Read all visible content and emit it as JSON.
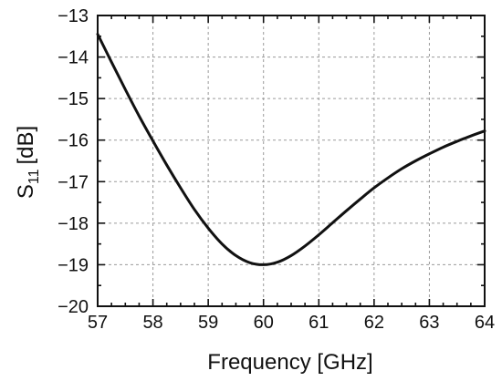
{
  "chart_data": {
    "type": "line",
    "xlabel": "Frequency [GHz]",
    "ylabel_base": "S",
    "ylabel_sub": "11",
    "ylabel_unit": "[dB]",
    "xlim": [
      57,
      64
    ],
    "ylim": [
      -20,
      -13
    ],
    "x_ticks": [
      "57",
      "58",
      "59",
      "60",
      "61",
      "62",
      "63",
      "64"
    ],
    "y_ticks": [
      "−13",
      "−14",
      "−15",
      "−16",
      "−17",
      "−18",
      "−19",
      "−20"
    ],
    "grid": true,
    "series": [
      {
        "color": "#111111",
        "x": [
          57.0,
          57.25,
          57.5,
          57.75,
          58.0,
          58.25,
          58.5,
          58.75,
          59.0,
          59.25,
          59.5,
          59.75,
          60.0,
          60.25,
          60.5,
          60.75,
          61.0,
          61.25,
          61.5,
          61.75,
          62.0,
          62.25,
          62.5,
          62.75,
          63.0,
          63.25,
          63.5,
          63.75,
          64.0
        ],
        "y": [
          -13.45,
          -14.12,
          -14.78,
          -15.42,
          -16.02,
          -16.6,
          -17.15,
          -17.67,
          -18.12,
          -18.5,
          -18.78,
          -18.95,
          -19.0,
          -18.94,
          -18.78,
          -18.55,
          -18.28,
          -17.99,
          -17.7,
          -17.42,
          -17.15,
          -16.91,
          -16.69,
          -16.5,
          -16.33,
          -16.17,
          -16.03,
          -15.9,
          -15.78
        ]
      }
    ]
  }
}
